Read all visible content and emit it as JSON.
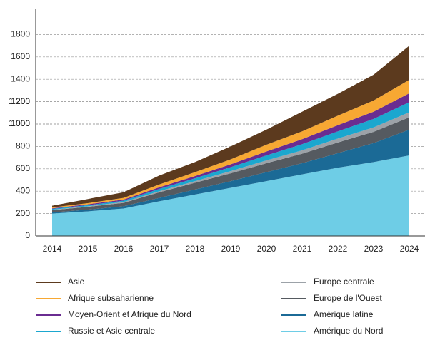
{
  "chart_data": {
    "type": "stacked_area",
    "categories": [
      "2014",
      "2015",
      "2016",
      "2017",
      "2018",
      "2019",
      "2020",
      "2021",
      "2022",
      "2023",
      "2024"
    ],
    "series": [
      {
        "name": "Amérique du Nord",
        "color": "#6ecde6",
        "values": [
          200,
          220,
          245,
          310,
          370,
          430,
          490,
          550,
          610,
          660,
          720
        ]
      },
      {
        "name": "Amérique latine",
        "color": "#1b6a96",
        "values": [
          10,
          15,
          20,
          30,
          45,
          60,
          80,
          100,
          130,
          170,
          230
        ]
      },
      {
        "name": "Europe de l'Ouest",
        "color": "#555a60",
        "values": [
          20,
          25,
          30,
          50,
          60,
          70,
          80,
          85,
          95,
          100,
          110
        ]
      },
      {
        "name": "Europe centrale",
        "color": "#9ca2a8",
        "values": [
          5,
          5,
          8,
          10,
          15,
          20,
          25,
          30,
          35,
          40,
          45
        ]
      },
      {
        "name": "Russie et Asie centrale",
        "color": "#1ba7cf",
        "values": [
          8,
          10,
          12,
          20,
          25,
          35,
          45,
          55,
          65,
          75,
          90
        ]
      },
      {
        "name": "Moyen-Orient et Afrique du Nord",
        "color": "#6a2c91",
        "values": [
          5,
          8,
          10,
          15,
          20,
          25,
          35,
          45,
          55,
          65,
          80
        ]
      },
      {
        "name": "Afrique subsaharienne",
        "color": "#f7a833",
        "values": [
          7,
          10,
          15,
          25,
          35,
          45,
          60,
          70,
          85,
          100,
          120
        ]
      },
      {
        "name": "Asie",
        "color": "#5c3a1e",
        "values": [
          15,
          37,
          50,
          80,
          90,
          115,
          135,
          175,
          195,
          230,
          305
        ]
      }
    ],
    "ylim": [
      0,
      2000
    ],
    "yticks": [
      0,
      200,
      400,
      600,
      800,
      1000,
      1200,
      1400,
      1600,
      1800,
      {
        "value": 1000,
        "label": "1 000"
      },
      {
        "value": 1200,
        "label": "1 200"
      }
    ],
    "grid": true
  }
}
